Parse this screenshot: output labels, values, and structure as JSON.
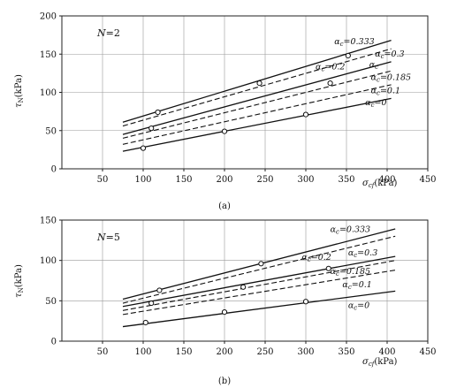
{
  "chart_data": [
    {
      "type": "line",
      "panel": "(a)",
      "title": "",
      "annotation": "N=2",
      "ylabel": "τN(kPa)",
      "xlabel": "σcf(kPa)",
      "xlim": [
        0,
        450
      ],
      "ylim": [
        0,
        200
      ],
      "xticks": [
        "50",
        "100",
        "150",
        "200",
        "250",
        "300",
        "350",
        "400",
        "450"
      ],
      "yticks": [
        "0",
        "50",
        "100",
        "150",
        "200"
      ],
      "grid": true,
      "series": [
        {
          "name": "αc=0.333",
          "style": "solid",
          "x": [
            75,
            405
          ],
          "y": [
            61,
            168
          ]
        },
        {
          "name": "αc=0.3",
          "style": "dashed",
          "x": [
            75,
            405
          ],
          "y": [
            56,
            157
          ]
        },
        {
          "name": "αc=0.2",
          "style": "solid",
          "x": [
            75,
            405
          ],
          "y": [
            45,
            140
          ]
        },
        {
          "name": "αc=0.185",
          "style": "dashed",
          "x": [
            75,
            405
          ],
          "y": [
            40,
            128
          ]
        },
        {
          "name": "αc=0.1",
          "style": "dashed",
          "x": [
            75,
            405
          ],
          "y": [
            32,
            110
          ]
        },
        {
          "name": "αc=0",
          "style": "solid",
          "x": [
            75,
            405
          ],
          "y": [
            23,
            92
          ]
        }
      ],
      "points": [
        {
          "x": 118,
          "y": 74
        },
        {
          "x": 243,
          "y": 112
        },
        {
          "x": 352,
          "y": 148
        },
        {
          "x": 110,
          "y": 53
        },
        {
          "x": 330,
          "y": 112
        },
        {
          "x": 100,
          "y": 27
        },
        {
          "x": 200,
          "y": 49
        },
        {
          "x": 300,
          "y": 71
        }
      ],
      "labels": [
        {
          "text": "αc=0.333",
          "x": 335,
          "y": 163
        },
        {
          "text": "αc=0.3",
          "x": 385,
          "y": 147
        },
        {
          "text": "αc=0.2",
          "x": 312,
          "y": 130
        },
        {
          "text": "αc",
          "x": 378,
          "y": 133
        },
        {
          "text": "αc=0.185",
          "x": 380,
          "y": 116
        },
        {
          "text": "αc=0.1",
          "x": 380,
          "y": 99
        },
        {
          "text": "αc=0",
          "x": 373,
          "y": 83
        }
      ],
      "caption": "(a)"
    },
    {
      "type": "line",
      "panel": "(b)",
      "title": "",
      "annotation": "N=5",
      "ylabel": "τN(kPa)",
      "xlabel": "σcf(kPa)",
      "xlim": [
        0,
        450
      ],
      "ylim": [
        0,
        150
      ],
      "xticks": [
        "50",
        "100",
        "150",
        "200",
        "250",
        "300",
        "350",
        "400",
        "450"
      ],
      "yticks": [
        "0",
        "50",
        "100",
        "150"
      ],
      "grid": true,
      "series": [
        {
          "name": "αc=0.333",
          "style": "solid",
          "x": [
            75,
            410
          ],
          "y": [
            52,
            139
          ]
        },
        {
          "name": "αc=0.3",
          "style": "dashed",
          "x": [
            75,
            410
          ],
          "y": [
            47,
            130
          ]
        },
        {
          "name": "αc=0.2",
          "style": "solid",
          "x": [
            75,
            410
          ],
          "y": [
            43,
            105
          ]
        },
        {
          "name": "αc=0.185",
          "style": "dashed",
          "x": [
            75,
            410
          ],
          "y": [
            38,
            100
          ]
        },
        {
          "name": "αc=0.1",
          "style": "dashed",
          "x": [
            75,
            410
          ],
          "y": [
            33,
            88
          ]
        },
        {
          "name": "αc=0",
          "style": "solid",
          "x": [
            75,
            410
          ],
          "y": [
            18,
            62
          ]
        }
      ],
      "points": [
        {
          "x": 120,
          "y": 63
        },
        {
          "x": 245,
          "y": 96
        },
        {
          "x": 110,
          "y": 47
        },
        {
          "x": 223,
          "y": 67
        },
        {
          "x": 328,
          "y": 90
        },
        {
          "x": 103,
          "y": 23
        },
        {
          "x": 200,
          "y": 36
        },
        {
          "x": 300,
          "y": 49
        }
      ],
      "labels": [
        {
          "text": "αc=0.333",
          "x": 330,
          "y": 135
        },
        {
          "text": "αc=0.2",
          "x": 295,
          "y": 101
        },
        {
          "text": "αc=0.3",
          "x": 352,
          "y": 106
        },
        {
          "text": "αc=0.185",
          "x": 330,
          "y": 83
        },
        {
          "text": "αc=0.1",
          "x": 345,
          "y": 67
        },
        {
          "text": "αc=0",
          "x": 352,
          "y": 41
        }
      ],
      "caption": "(b)"
    }
  ]
}
